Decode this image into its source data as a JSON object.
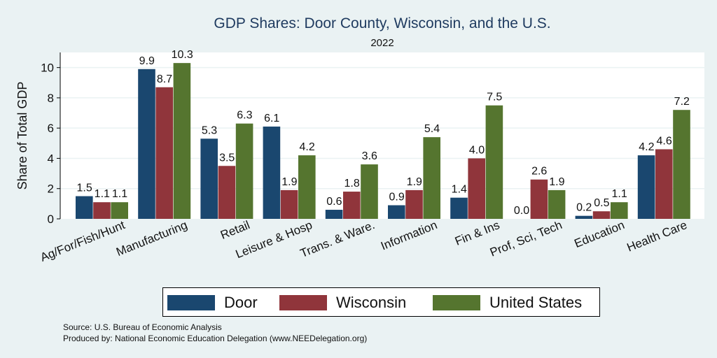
{
  "chart_data": {
    "type": "bar",
    "title": "GDP Shares: Door County, Wisconsin, and the U.S.",
    "subtitle": "2022",
    "ylabel": "Share of Total GDP",
    "xlabel": "",
    "ylim": [
      0,
      11
    ],
    "yticks": [
      0,
      2,
      4,
      6,
      8,
      10
    ],
    "grid": true,
    "legend_position": "bottom",
    "categories": [
      "Ag/For/Fish/Hunt",
      "Manufacturing",
      "Retail",
      "Leisure & Hosp",
      "Trans. & Ware.",
      "Information",
      "Fin & Ins",
      "Prof, Sci, Tech",
      "Education",
      "Health Care"
    ],
    "series": [
      {
        "name": "Door",
        "color": "#1a476f",
        "values": [
          1.5,
          9.9,
          5.3,
          6.1,
          0.6,
          0.9,
          1.4,
          0.0,
          0.2,
          4.2
        ]
      },
      {
        "name": "Wisconsin",
        "color": "#90353b",
        "values": [
          1.1,
          8.7,
          3.5,
          1.9,
          1.8,
          1.9,
          4.0,
          2.6,
          0.5,
          4.6
        ]
      },
      {
        "name": "United States",
        "color": "#55752f",
        "values": [
          1.1,
          10.3,
          6.3,
          4.2,
          3.6,
          5.4,
          7.5,
          1.9,
          1.1,
          7.2
        ]
      }
    ]
  },
  "notes": {
    "source": "Source: U.S. Bureau of Economic Analysis",
    "produced": "Produced by: National Economic Education Delegation (www.NEEDelegation.org)"
  }
}
